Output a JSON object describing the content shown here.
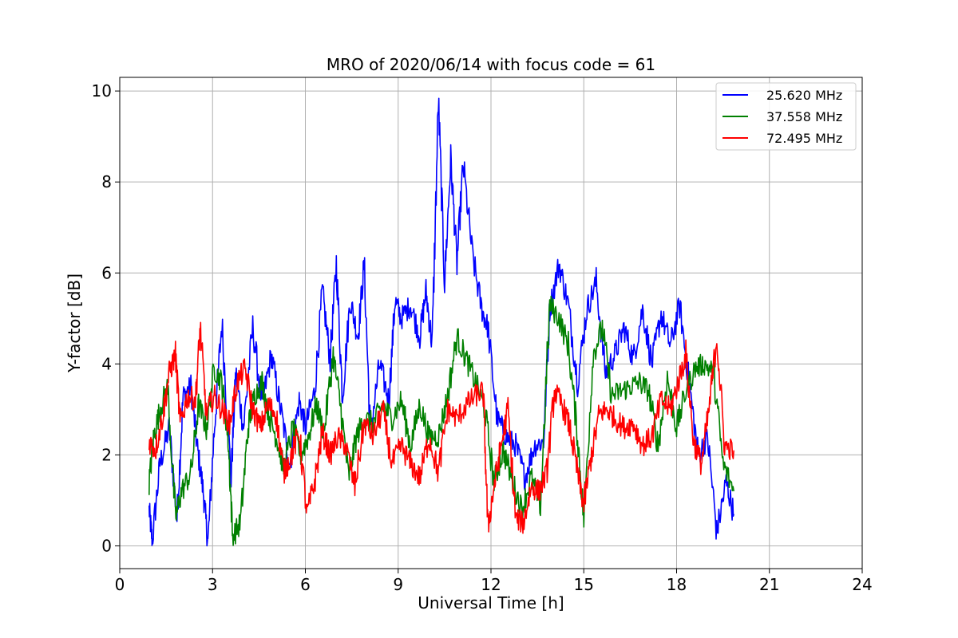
{
  "chart_data": {
    "type": "line",
    "title": "MRO of 2020/06/14 with focus code = 61",
    "xlabel": "Universal Time [h]",
    "ylabel": "Y-factor [dB]",
    "xlim": [
      0,
      24
    ],
    "ylim": [
      -0.5,
      10.3
    ],
    "xticks": [
      "0",
      "3",
      "6",
      "9",
      "12",
      "15",
      "18",
      "21",
      "24"
    ],
    "xtick_values": [
      0,
      3,
      6,
      9,
      12,
      15,
      18,
      21,
      24
    ],
    "yticks": [
      "0",
      "2",
      "4",
      "6",
      "8",
      "10"
    ],
    "ytick_values": [
      0,
      2,
      4,
      6,
      8,
      10
    ],
    "grid": true,
    "legend_position": "top-right",
    "series": [
      {
        "name": "25.620 MHz",
        "color": "#0000ff",
        "x": [
          0.95,
          1.05,
          1.3,
          1.6,
          1.85,
          2.05,
          2.3,
          2.5,
          2.7,
          2.85,
          3.05,
          3.3,
          3.6,
          3.75,
          4.0,
          4.3,
          4.6,
          4.9,
          5.2,
          5.5,
          5.8,
          6.0,
          6.3,
          6.55,
          6.8,
          7.0,
          7.2,
          7.45,
          7.7,
          7.9,
          8.1,
          8.4,
          8.7,
          8.9,
          9.1,
          9.4,
          9.7,
          9.9,
          10.1,
          10.3,
          10.5,
          10.7,
          10.9,
          11.1,
          11.4,
          11.7,
          11.9,
          12.2,
          12.5,
          12.8,
          13.1,
          13.4,
          13.7,
          13.9,
          14.2,
          14.5,
          14.8,
          15.1,
          15.4,
          15.7,
          16.0,
          16.3,
          16.6,
          16.9,
          17.2,
          17.5,
          17.8,
          18.1,
          18.4,
          18.7,
          19.0,
          19.3,
          19.6,
          19.85
        ],
        "y": [
          0.8,
          0.1,
          1.8,
          2.6,
          0.6,
          3.3,
          3.5,
          2.2,
          1.2,
          0.05,
          2.5,
          4.9,
          1.5,
          3.8,
          2.6,
          4.8,
          3.1,
          4.2,
          3.0,
          1.8,
          3.2,
          2.6,
          3.4,
          5.6,
          4.1,
          6.2,
          3.3,
          5.4,
          4.6,
          6.2,
          2.5,
          4.0,
          3.2,
          5.4,
          5.0,
          5.3,
          4.6,
          5.6,
          4.4,
          9.8,
          5.8,
          8.5,
          6.2,
          8.4,
          6.4,
          5.2,
          4.8,
          2.8,
          2.4,
          2.2,
          1.5,
          2.2,
          2.3,
          5.2,
          6.2,
          5.3,
          3.6,
          5.2,
          5.8,
          3.8,
          4.2,
          4.8,
          4.1,
          5.2,
          4.0,
          5.1,
          4.4,
          5.3,
          3.6,
          2.0,
          2.4,
          0.3,
          1.4,
          0.7
        ]
      },
      {
        "name": "37.558 MHz",
        "color": "#008000",
        "x": [
          0.95,
          1.1,
          1.3,
          1.55,
          1.8,
          2.0,
          2.3,
          2.55,
          2.8,
          3.05,
          3.3,
          3.5,
          3.65,
          3.9,
          4.15,
          4.35,
          4.6,
          4.85,
          5.1,
          5.3,
          5.6,
          5.85,
          6.1,
          6.35,
          6.6,
          6.9,
          7.15,
          7.4,
          7.65,
          7.9,
          8.2,
          8.5,
          8.8,
          9.1,
          9.4,
          9.7,
          10.0,
          10.3,
          10.6,
          10.9,
          11.2,
          11.5,
          11.8,
          12.1,
          12.4,
          12.7,
          13.0,
          13.3,
          13.6,
          13.9,
          14.2,
          14.5,
          14.8,
          15.0,
          15.3,
          15.6,
          15.9,
          16.2,
          16.5,
          16.8,
          17.1,
          17.4,
          17.7,
          18.0,
          18.3,
          18.6,
          18.9,
          19.2,
          19.5,
          19.85
        ],
        "y": [
          1.4,
          2.4,
          3.0,
          3.5,
          0.6,
          1.2,
          1.6,
          3.1,
          2.6,
          3.9,
          3.6,
          2.4,
          0.2,
          0.5,
          2.6,
          3.3,
          3.6,
          2.8,
          2.3,
          1.7,
          2.6,
          2.0,
          2.4,
          3.1,
          2.5,
          4.2,
          3.0,
          1.5,
          2.4,
          2.8,
          2.7,
          3.1,
          2.8,
          3.2,
          2.2,
          3.1,
          2.4,
          2.4,
          3.3,
          4.6,
          4.1,
          3.6,
          3.0,
          1.4,
          2.1,
          1.4,
          0.8,
          1.5,
          0.9,
          5.3,
          5.0,
          4.4,
          2.4,
          0.6,
          4.2,
          4.8,
          3.3,
          3.4,
          3.5,
          3.6,
          3.4,
          2.2,
          3.7,
          2.6,
          3.4,
          3.9,
          4.0,
          3.8,
          1.8,
          1.2
        ]
      },
      {
        "name": "72.495 MHz",
        "color": "#ff0000",
        "x": [
          0.95,
          1.15,
          1.4,
          1.6,
          1.8,
          1.95,
          2.2,
          2.45,
          2.6,
          2.8,
          3.05,
          3.3,
          3.55,
          3.8,
          4.05,
          4.3,
          4.55,
          4.8,
          5.05,
          5.3,
          5.55,
          5.8,
          6.05,
          6.3,
          6.55,
          6.8,
          7.05,
          7.3,
          7.6,
          7.9,
          8.2,
          8.5,
          8.8,
          9.1,
          9.4,
          9.7,
          10.0,
          10.3,
          10.6,
          10.9,
          11.2,
          11.5,
          11.75,
          11.9,
          12.1,
          12.3,
          12.55,
          12.8,
          13.05,
          13.3,
          13.55,
          13.8,
          14.05,
          14.3,
          14.55,
          14.8,
          15.0,
          15.25,
          15.5,
          15.75,
          16.0,
          16.3,
          16.6,
          16.9,
          17.2,
          17.5,
          17.8,
          18.05,
          18.3,
          18.55,
          18.8,
          19.05,
          19.3,
          19.55,
          19.85
        ],
        "y": [
          2.3,
          2.1,
          2.9,
          3.8,
          4.2,
          2.7,
          3.3,
          3.2,
          4.8,
          2.9,
          3.3,
          3.0,
          2.7,
          3.6,
          3.9,
          3.0,
          2.6,
          3.1,
          2.9,
          1.6,
          2.0,
          2.5,
          0.7,
          1.4,
          2.5,
          2.0,
          2.4,
          2.2,
          1.3,
          2.7,
          2.4,
          3.0,
          1.8,
          2.2,
          1.8,
          1.5,
          2.4,
          1.6,
          3.0,
          2.8,
          3.1,
          3.3,
          3.4,
          0.4,
          1.3,
          2.1,
          3.0,
          0.6,
          0.5,
          1.3,
          1.2,
          1.6,
          3.4,
          3.1,
          2.6,
          1.6,
          0.9,
          2.0,
          2.9,
          3.0,
          2.8,
          2.6,
          2.7,
          2.2,
          2.4,
          3.2,
          3.0,
          3.6,
          4.2,
          2.3,
          1.8,
          3.0,
          4.6,
          2.2,
          2.1
        ]
      }
    ]
  }
}
